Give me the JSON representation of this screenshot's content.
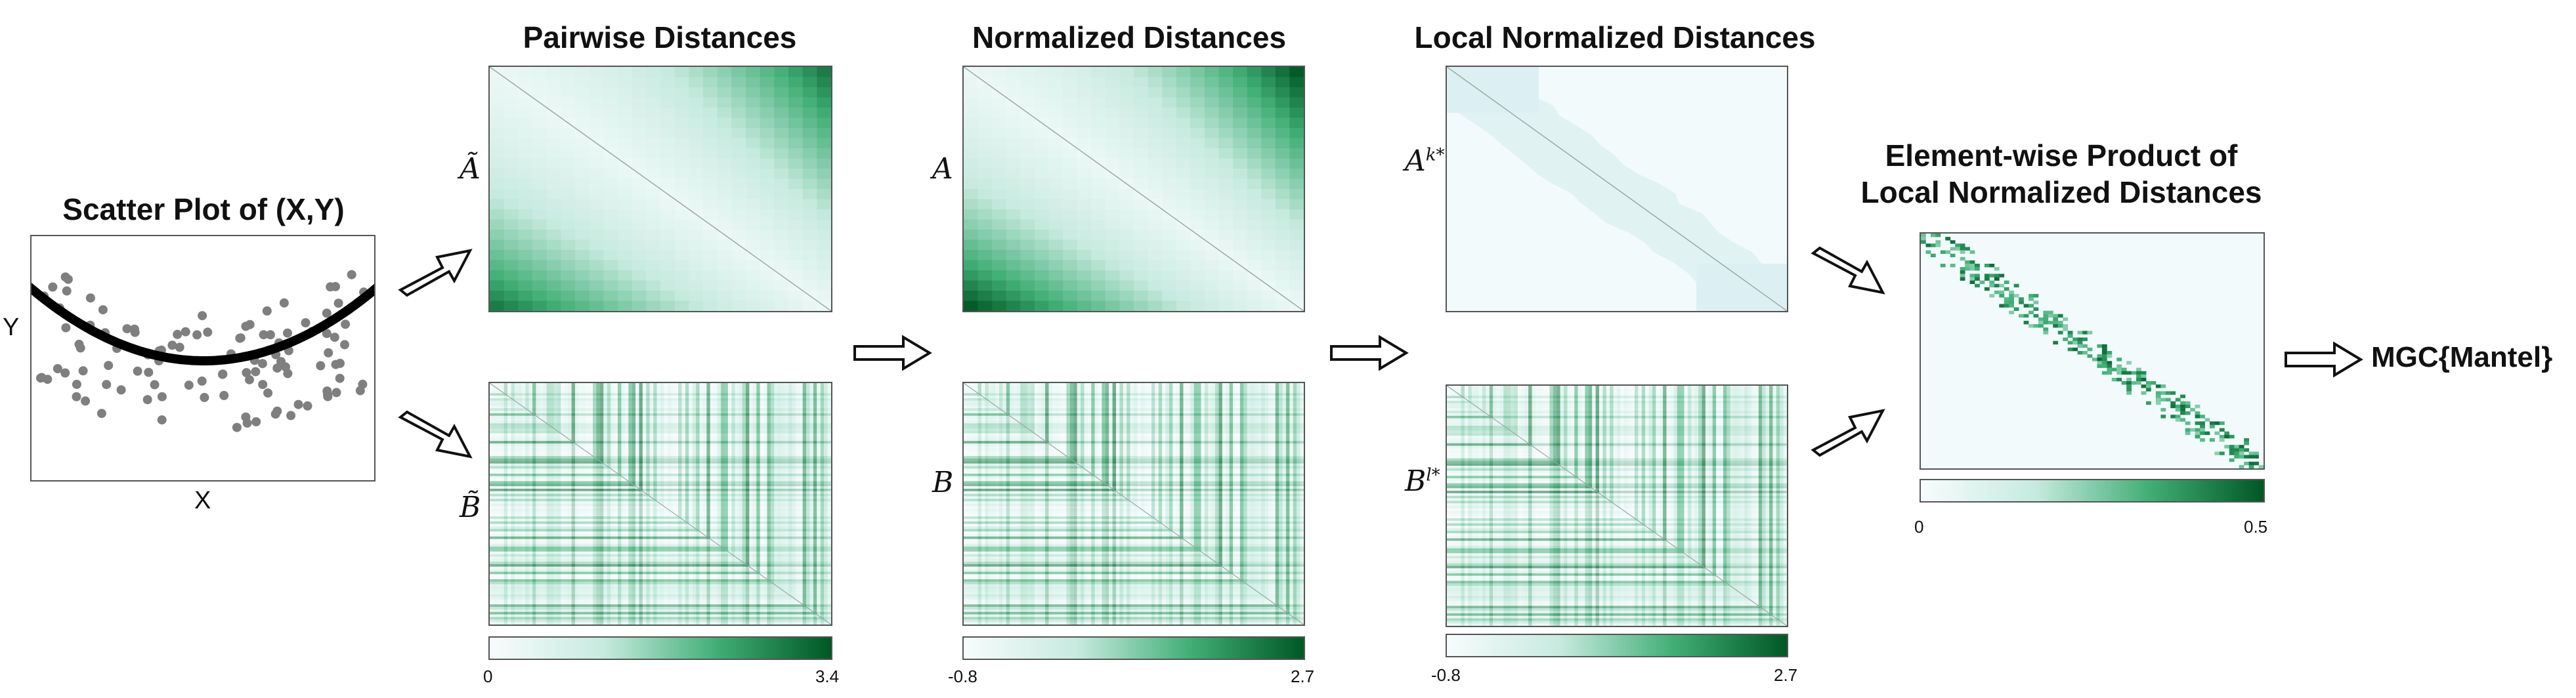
{
  "scatter": {
    "title": "Scatter Plot of (X,Y)",
    "xlabel": "X",
    "ylabel": "Y"
  },
  "col1": {
    "title": "Pairwise Distances",
    "label_a": "Ã",
    "label_b": "B̃",
    "cbar_min": "0",
    "cbar_max": "3.4"
  },
  "col2": {
    "title": "Normalized Distances",
    "label_a": "A",
    "label_b": "B",
    "cbar_min": "-0.8",
    "cbar_max": "2.7"
  },
  "col3": {
    "title": "Local Normalized Distances",
    "label_a": "A",
    "label_a_sup": "k*",
    "label_b": "B",
    "label_b_sup": "l*",
    "cbar_min": "-0.8",
    "cbar_max": "2.7"
  },
  "col4": {
    "title_line1": "Element-wise Product of",
    "title_line2": "Local Normalized Distances",
    "cbar_min": "0",
    "cbar_max": "0.5"
  },
  "result": "MGC{Mantel}",
  "colors": {
    "green_dark": "#005824",
    "green_mid": "#41ae76",
    "green_light": "#c7eadf",
    "green_bg": "#f7fcfd",
    "points": "#7f7f7f",
    "curve": "#000000"
  }
}
